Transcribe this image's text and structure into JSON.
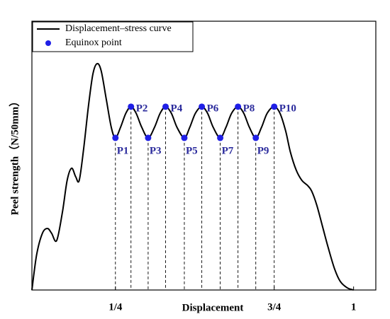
{
  "chart_data": {
    "type": "line",
    "xlabel": "Displacement",
    "ylabel": "Peel strength（N/50mm）",
    "legend": "upper left",
    "xlim": [
      -0.013,
      1.07
    ],
    "ylim": [
      0,
      1
    ],
    "xticks": [
      {
        "value": 0.25,
        "label": "1/4"
      },
      {
        "value": 0.75,
        "label": "3/4"
      },
      1
    ],
    "series": [
      {
        "name": "Displacement–stress curve",
        "type": "line",
        "color": "#000000",
        "x": [
          -0.013,
          0.002,
          0.02,
          0.036,
          0.049,
          0.065,
          0.083,
          0.098,
          0.112,
          0.125,
          0.136,
          0.15,
          0.165,
          0.179,
          0.192,
          0.205,
          0.221,
          0.237,
          0.25,
          0.266,
          0.283,
          0.299,
          0.315,
          0.333,
          0.353,
          0.373,
          0.391,
          0.408,
          0.426,
          0.444,
          0.467,
          0.484,
          0.502,
          0.522,
          0.54,
          0.558,
          0.58,
          0.598,
          0.616,
          0.636,
          0.654,
          0.672,
          0.692,
          0.71,
          0.728,
          0.75,
          0.768,
          0.786,
          0.801,
          0.819,
          0.837,
          0.855,
          0.868,
          0.884,
          0.902,
          0.92,
          0.94,
          0.958,
          0.98,
          1.0
        ],
        "values": [
          0,
          0.132,
          0.211,
          0.229,
          0.211,
          0.184,
          0.289,
          0.408,
          0.453,
          0.421,
          0.408,
          0.526,
          0.684,
          0.803,
          0.842,
          0.816,
          0.711,
          0.605,
          0.566,
          0.605,
          0.658,
          0.682,
          0.658,
          0.605,
          0.566,
          0.605,
          0.658,
          0.682,
          0.658,
          0.605,
          0.566,
          0.605,
          0.658,
          0.682,
          0.658,
          0.605,
          0.566,
          0.605,
          0.658,
          0.682,
          0.658,
          0.605,
          0.566,
          0.605,
          0.658,
          0.682,
          0.658,
          0.592,
          0.513,
          0.447,
          0.408,
          0.389,
          0.368,
          0.316,
          0.237,
          0.158,
          0.079,
          0.032,
          0.008,
          0
        ]
      },
      {
        "name": "Equinox point",
        "type": "scatter",
        "color": "#1f1fe6",
        "x": [
          0.25,
          0.299,
          0.353,
          0.408,
          0.467,
          0.522,
          0.58,
          0.636,
          0.692,
          0.75
        ],
        "values": [
          0.566,
          0.682,
          0.566,
          0.682,
          0.566,
          0.682,
          0.566,
          0.682,
          0.566,
          0.682
        ],
        "labels": [
          "P1",
          "P2",
          "P3",
          "P4",
          "P5",
          "P6",
          "P7",
          "P8",
          "P9",
          "P10"
        ]
      }
    ]
  }
}
